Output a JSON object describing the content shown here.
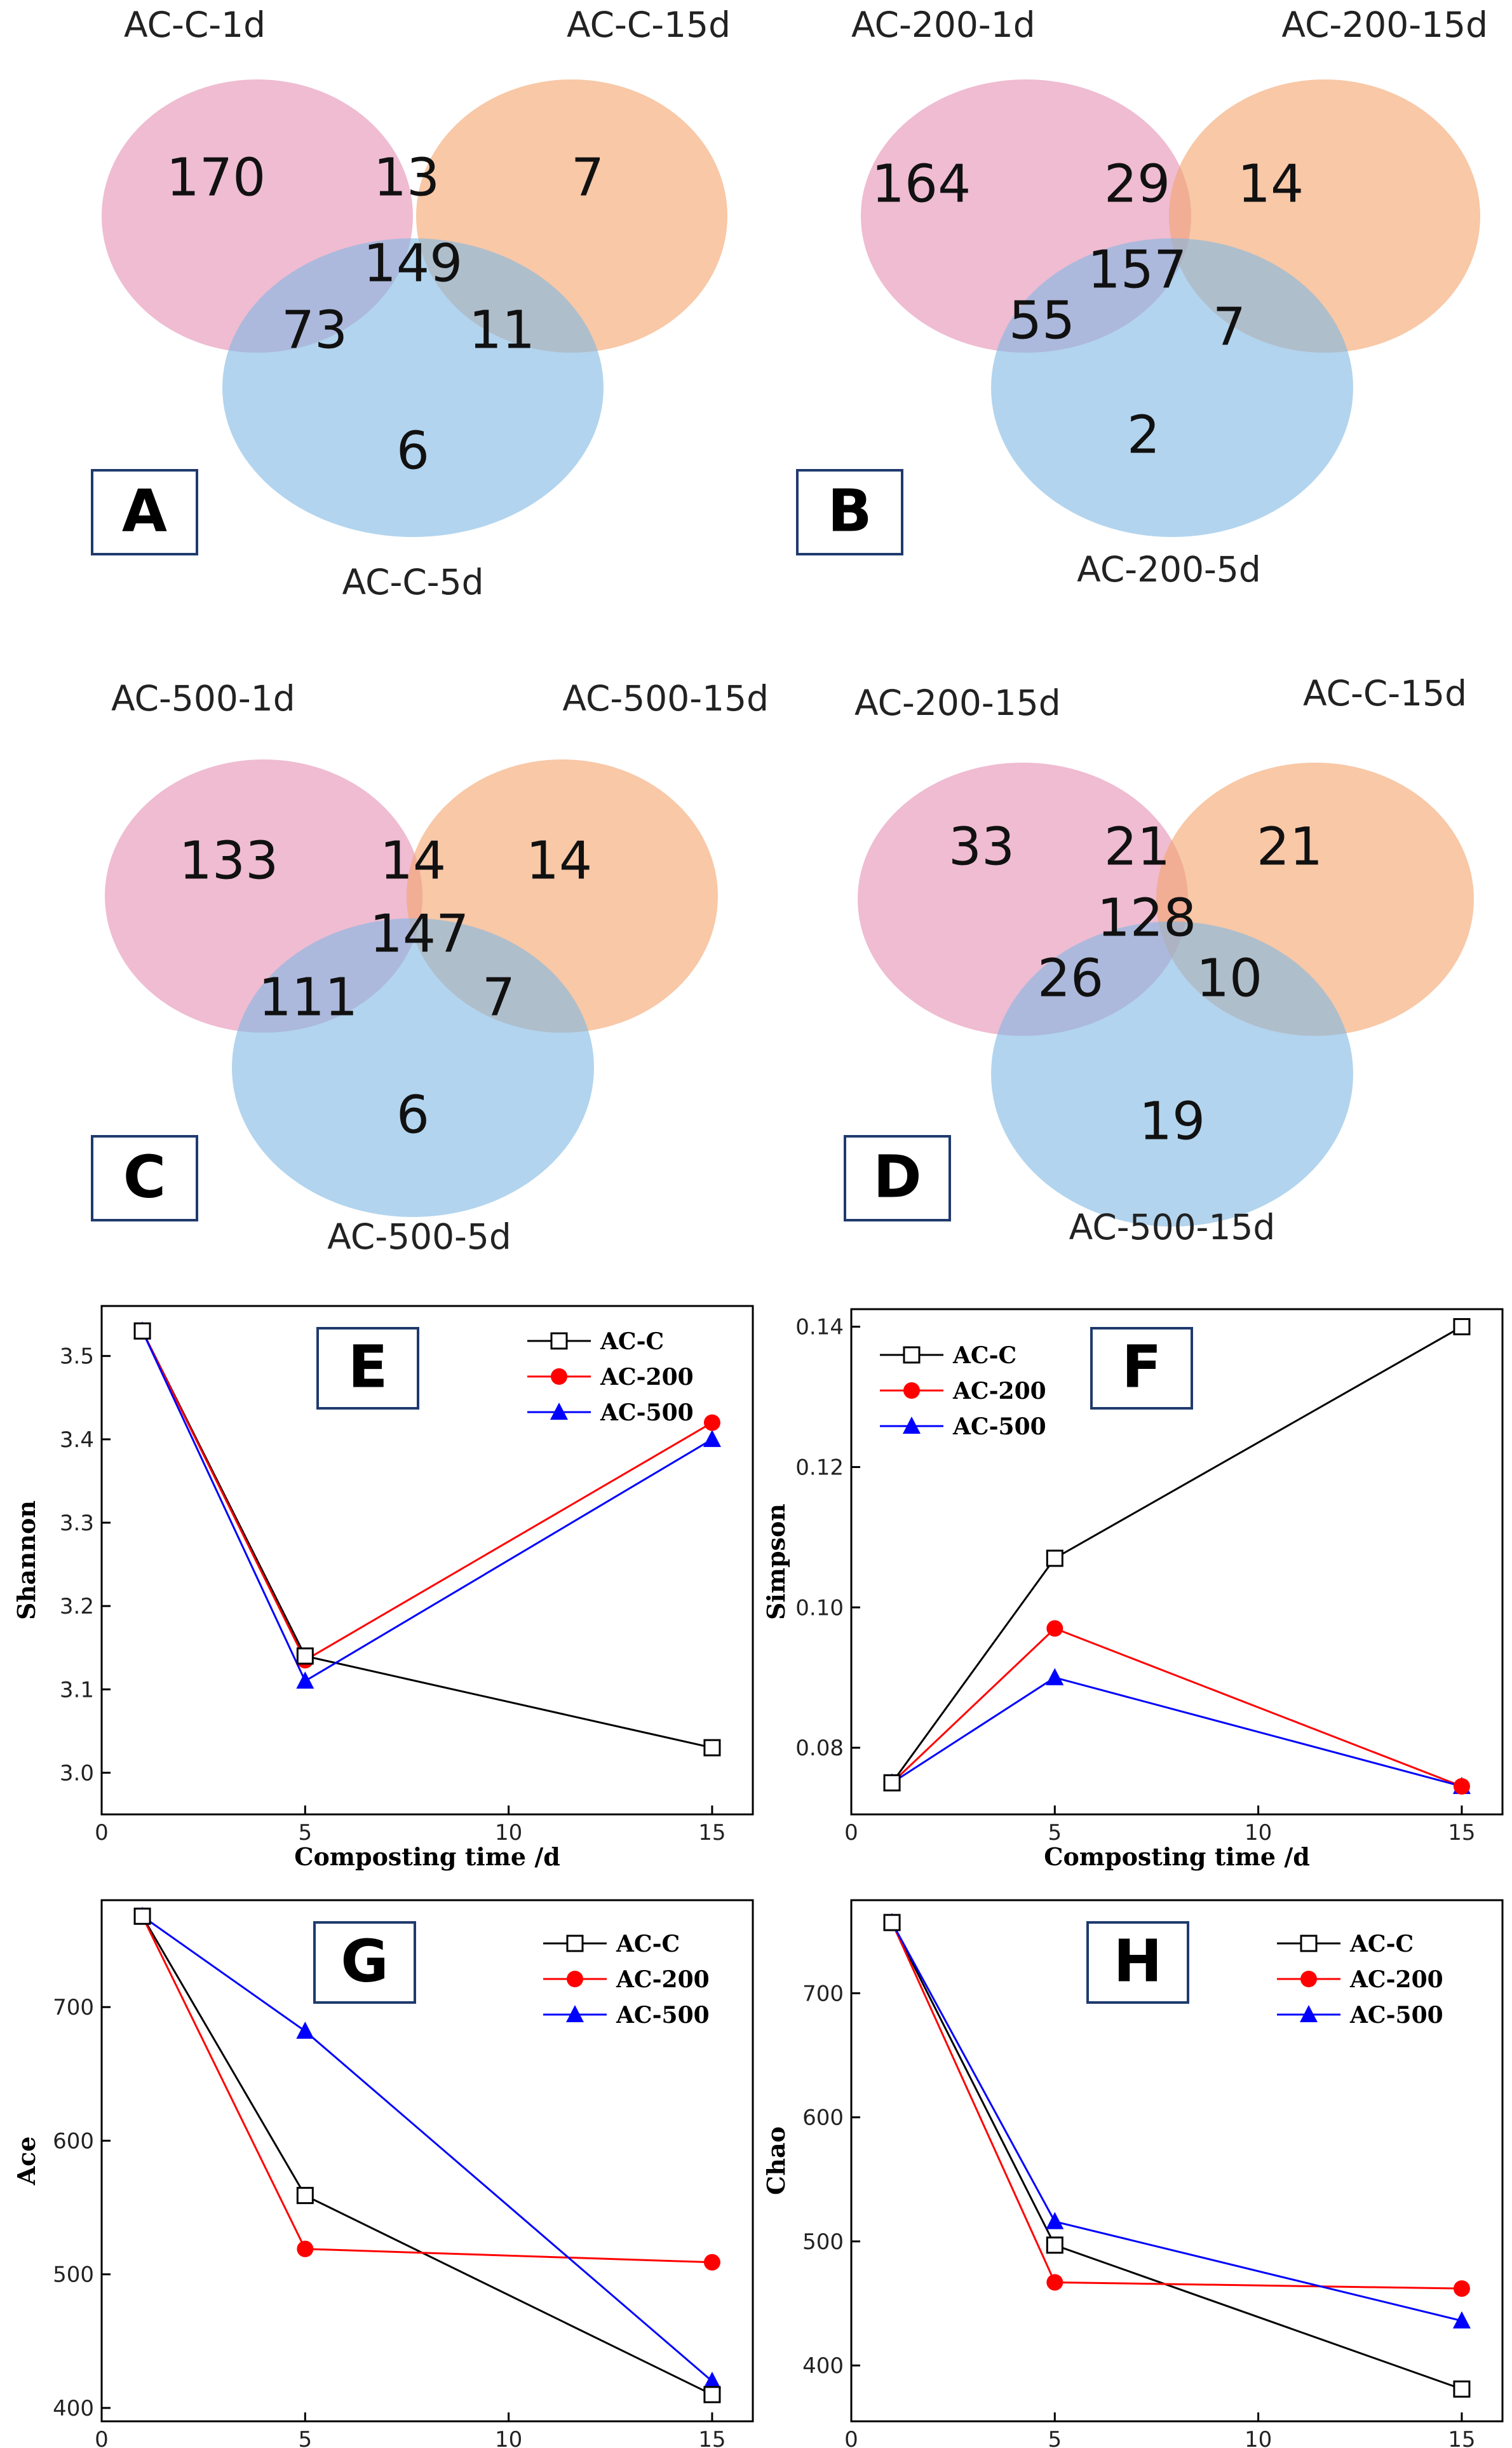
{
  "colors": {
    "circle1": "#e58fb4",
    "circle2": "#f4a36c",
    "circle3": "#7fb7e3",
    "series": {
      "AC-C": "#000000",
      "AC-200": "#ff0000",
      "AC-500": "#0000ff"
    },
    "box_border": "#1f3a6e"
  },
  "venns": [
    {
      "panel": "A",
      "labels": [
        "AC-C-1d",
        "AC-C-15d",
        "AC-C-5d"
      ],
      "regions": {
        "only1": "170",
        "only2": "7",
        "only3": "6",
        "r12": "13",
        "r13": "73",
        "r23": "11",
        "r123": "149"
      }
    },
    {
      "panel": "B",
      "labels": [
        "AC-200-1d",
        "AC-200-15d",
        "AC-200-5d"
      ],
      "regions": {
        "only1": "164",
        "only2": "14",
        "only3": "2",
        "r12": "29",
        "r13": "55",
        "r23": "7",
        "r123": "157"
      }
    },
    {
      "panel": "C",
      "labels": [
        "AC-500-1d",
        "AC-500-15d",
        "AC-500-5d"
      ],
      "regions": {
        "only1": "133",
        "only2": "14",
        "only3": "6",
        "r12": "14",
        "r13": "111",
        "r23": "7",
        "r123": "147"
      }
    },
    {
      "panel": "D",
      "labels": [
        "AC-200-15d",
        "AC-C-15d",
        "AC-500-15d"
      ],
      "regions": {
        "only1": "33",
        "only2": "21",
        "only3": "19",
        "r12": "21",
        "r13": "26",
        "r23": "10",
        "r123": "128"
      }
    }
  ],
  "chart_data": [
    {
      "panel": "E",
      "type": "line",
      "xlabel": "Composting time /d",
      "ylabel": "Shannon",
      "x": [
        1,
        5,
        15
      ],
      "xlim": [
        0,
        16
      ],
      "xticks": [
        "0",
        "5",
        "10",
        "15"
      ],
      "ylim": [
        2.95,
        3.56
      ],
      "yticks": [
        "3.0",
        "3.1",
        "3.2",
        "3.3",
        "3.4",
        "3.5"
      ],
      "legend": "top-right",
      "series": [
        {
          "name": "AC-C",
          "marker": "square",
          "values": [
            3.53,
            3.14,
            3.03
          ]
        },
        {
          "name": "AC-200",
          "marker": "circle",
          "values": [
            3.53,
            3.135,
            3.42
          ]
        },
        {
          "name": "AC-500",
          "marker": "triangle",
          "values": [
            3.53,
            3.11,
            3.4
          ]
        }
      ]
    },
    {
      "panel": "F",
      "type": "line",
      "xlabel": "Composting time /d",
      "ylabel": "Simpson",
      "x": [
        1,
        5,
        15
      ],
      "xlim": [
        0,
        16
      ],
      "xticks": [
        "0",
        "5",
        "10",
        "15"
      ],
      "ylim": [
        0.0705,
        0.1425
      ],
      "yticks": [
        "0.08",
        "0.10",
        "0.12",
        "0.14"
      ],
      "legend": "top-left",
      "series": [
        {
          "name": "AC-C",
          "marker": "square",
          "values": [
            0.075,
            0.107,
            0.14
          ]
        },
        {
          "name": "AC-200",
          "marker": "circle",
          "values": [
            0.075,
            0.097,
            0.0745
          ]
        },
        {
          "name": "AC-500",
          "marker": "triangle",
          "values": [
            0.075,
            0.09,
            0.0745
          ]
        }
      ]
    },
    {
      "panel": "G",
      "type": "line",
      "xlabel": "Composting time /d",
      "ylabel": "Ace",
      "x": [
        1,
        5,
        15
      ],
      "xlim": [
        0,
        16
      ],
      "xticks": [
        "0",
        "5",
        "10",
        "15"
      ],
      "ylim": [
        390,
        780
      ],
      "yticks": [
        "400",
        "500",
        "600",
        "700"
      ],
      "legend": "top-right",
      "series": [
        {
          "name": "AC-C",
          "marker": "square",
          "values": [
            768,
            559,
            410
          ]
        },
        {
          "name": "AC-200",
          "marker": "circle",
          "values": [
            768,
            519,
            509
          ]
        },
        {
          "name": "AC-500",
          "marker": "triangle",
          "values": [
            768,
            682,
            420
          ]
        }
      ]
    },
    {
      "panel": "H",
      "type": "line",
      "xlabel": "Composting time /d",
      "ylabel": "Chao",
      "x": [
        1,
        5,
        15
      ],
      "xlim": [
        0,
        16
      ],
      "xticks": [
        "0",
        "5",
        "10",
        "15"
      ],
      "ylim": [
        355,
        775
      ],
      "yticks": [
        "400",
        "500",
        "600",
        "700"
      ],
      "legend": "top-right",
      "series": [
        {
          "name": "AC-C",
          "marker": "square",
          "values": [
            757,
            497,
            381
          ]
        },
        {
          "name": "AC-200",
          "marker": "circle",
          "values": [
            757,
            467,
            462
          ]
        },
        {
          "name": "AC-500",
          "marker": "triangle",
          "values": [
            757,
            516,
            436
          ]
        }
      ]
    }
  ]
}
